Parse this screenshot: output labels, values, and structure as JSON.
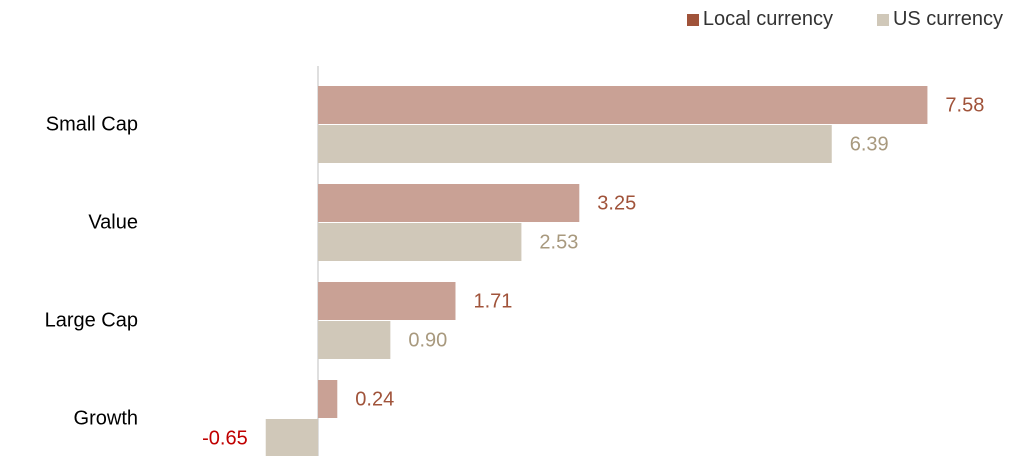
{
  "chart_data": {
    "type": "bar",
    "orientation": "horizontal",
    "categories": [
      "Small Cap",
      "Value",
      "Large Cap",
      "Growth"
    ],
    "series": [
      {
        "name": "Local currency",
        "values": [
          7.58,
          3.25,
          1.71,
          0.24
        ],
        "color": "#c9a195",
        "legend_color": "#a0533a",
        "label_color": "#a0533a"
      },
      {
        "name": "US currency",
        "values": [
          6.39,
          2.53,
          0.9,
          -0.65
        ],
        "color": "#d0c8b9",
        "legend_color": "#d0c8b9",
        "label_color": "#a8997e"
      }
    ],
    "value_labels": [
      [
        "7.58",
        "3.25",
        "1.71",
        "0.24"
      ],
      [
        "6.39",
        "2.53",
        "0.90",
        "-0.65"
      ]
    ],
    "negative_label_color": "#c00000",
    "legend_position": "top-right",
    "grid": false
  }
}
